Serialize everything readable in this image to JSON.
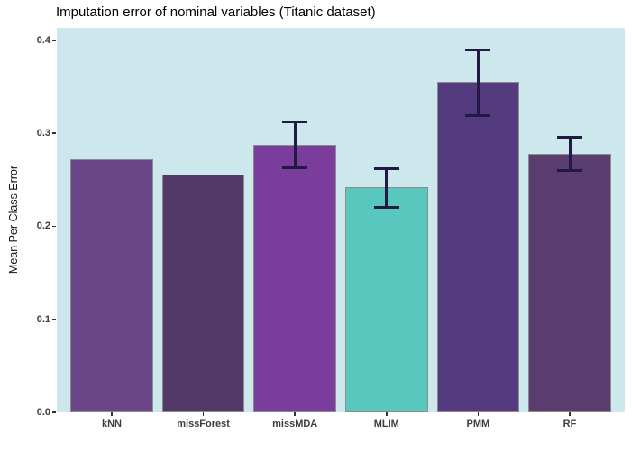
{
  "chart_data": {
    "type": "bar",
    "title": "Imputation error of nominal variables (Titanic dataset)",
    "ylabel": "Mean Per Class Error",
    "xlabel": "",
    "categories": [
      "kNN",
      "missForest",
      "missMDA",
      "MLIM",
      "PMM",
      "RF"
    ],
    "values": [
      0.272,
      0.256,
      0.288,
      0.242,
      0.355,
      0.278
    ],
    "error_bars": [
      null,
      null,
      {
        "ymin": 0.261,
        "ymax": 0.314
      },
      {
        "ymin": 0.219,
        "ymax": 0.263
      },
      {
        "ymin": 0.318,
        "ymax": 0.391
      },
      {
        "ymin": 0.258,
        "ymax": 0.297
      }
    ],
    "bar_colors": [
      "#6a4689",
      "#523968",
      "#7a3d9b",
      "#59c7bd",
      "#543a7e",
      "#5a3c6e"
    ],
    "yticks": [
      "0.0",
      "0.1",
      "0.2",
      "0.3",
      "0.4"
    ],
    "ylim": [
      0,
      0.41
    ],
    "grid": false,
    "legend": false,
    "colors": {
      "panel_background": "#cde8ec",
      "bar_border": "#8c8c8c",
      "errorbar": "#221944",
      "axis_text": "#3d3d3d",
      "tick_mark": "#333333",
      "title_text": "#000000"
    }
  }
}
